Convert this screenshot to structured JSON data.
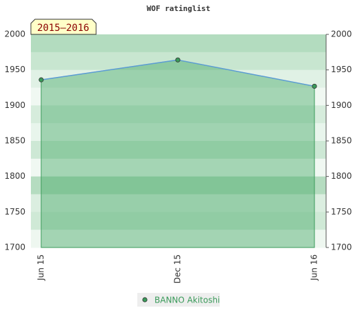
{
  "chart_data": {
    "type": "line",
    "title": "WOF ratinglist",
    "period_label": "2015–2016",
    "categories": [
      "Jun 15",
      "Dec 15",
      "Jun 16"
    ],
    "series": [
      {
        "name": "BANNO Akitoshi",
        "color": "#5b9bd5",
        "values": [
          1936,
          1964,
          1927
        ]
      }
    ],
    "ylim": [
      1700,
      2000
    ],
    "yticks": [
      1700,
      1750,
      1800,
      1850,
      1900,
      1950,
      2000
    ],
    "grid": true
  }
}
